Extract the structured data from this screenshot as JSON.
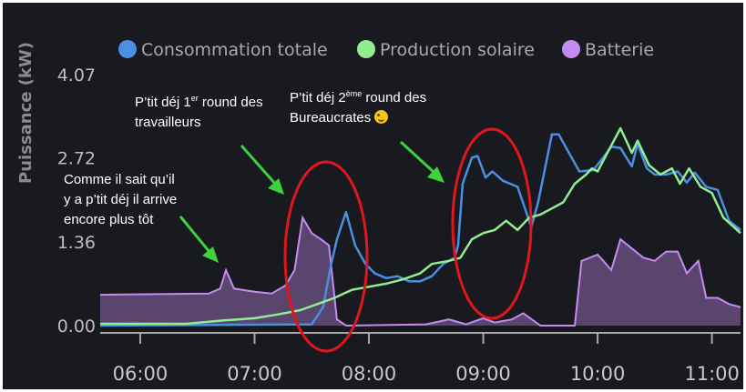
{
  "chart_data": {
    "type": "line",
    "ylabel": "Puissance (kW)",
    "yticks": [
      "4.07",
      "2.72",
      "1.36",
      "0.00"
    ],
    "ytick_values": [
      4.07,
      2.72,
      1.36,
      0.0
    ],
    "xticks": [
      "06:00",
      "07:00",
      "08:00",
      "09:00",
      "10:00",
      "11:00"
    ],
    "xtick_hours": [
      6,
      7,
      8,
      9,
      10,
      11
    ],
    "xlim": [
      5.65,
      11.25
    ],
    "ylim": [
      0,
      4.07
    ],
    "grid": false,
    "legend_position": "top",
    "series": [
      {
        "name": "Consommation totale",
        "color": "#4a90e2",
        "points": [
          [
            5.65,
            0.0
          ],
          [
            7.5,
            0.02
          ],
          [
            7.6,
            0.3
          ],
          [
            7.67,
            1.0
          ],
          [
            7.72,
            1.4
          ],
          [
            7.8,
            1.84
          ],
          [
            7.88,
            1.3
          ],
          [
            7.97,
            1.0
          ],
          [
            8.05,
            0.85
          ],
          [
            8.15,
            0.77
          ],
          [
            8.25,
            0.8
          ],
          [
            8.35,
            0.72
          ],
          [
            8.45,
            0.72
          ],
          [
            8.55,
            0.8
          ],
          [
            8.65,
            1.0
          ],
          [
            8.75,
            1.1
          ],
          [
            8.78,
            1.3
          ],
          [
            8.82,
            2.3
          ],
          [
            8.9,
            2.72
          ],
          [
            8.95,
            2.75
          ],
          [
            9.02,
            2.4
          ],
          [
            9.08,
            2.5
          ],
          [
            9.17,
            2.35
          ],
          [
            9.3,
            2.25
          ],
          [
            9.42,
            1.6
          ],
          [
            9.48,
            2.0
          ],
          [
            9.6,
            3.1
          ],
          [
            9.66,
            3.1
          ],
          [
            9.72,
            2.9
          ],
          [
            9.84,
            2.5
          ],
          [
            9.96,
            2.52
          ],
          [
            10.06,
            2.75
          ],
          [
            10.12,
            2.9
          ],
          [
            10.2,
            2.88
          ],
          [
            10.3,
            2.58
          ],
          [
            10.35,
            2.95
          ],
          [
            10.43,
            2.55
          ],
          [
            10.5,
            2.45
          ],
          [
            10.6,
            2.45
          ],
          [
            10.7,
            2.5
          ],
          [
            10.78,
            2.32
          ],
          [
            10.85,
            2.48
          ],
          [
            10.95,
            2.25
          ],
          [
            11.05,
            2.2
          ],
          [
            11.15,
            1.7
          ],
          [
            11.25,
            1.55
          ]
        ]
      },
      {
        "name": "Production solaire",
        "color": "#90ee90",
        "points": [
          [
            5.65,
            0.03
          ],
          [
            6.4,
            0.03
          ],
          [
            6.7,
            0.08
          ],
          [
            7.0,
            0.12
          ],
          [
            7.2,
            0.18
          ],
          [
            7.4,
            0.25
          ],
          [
            7.55,
            0.35
          ],
          [
            7.7,
            0.45
          ],
          [
            7.85,
            0.58
          ],
          [
            8.0,
            0.63
          ],
          [
            8.15,
            0.68
          ],
          [
            8.3,
            0.75
          ],
          [
            8.45,
            0.85
          ],
          [
            8.55,
            1.0
          ],
          [
            8.7,
            1.05
          ],
          [
            8.8,
            1.1
          ],
          [
            8.9,
            1.4
          ],
          [
            9.0,
            1.5
          ],
          [
            9.1,
            1.55
          ],
          [
            9.2,
            1.7
          ],
          [
            9.3,
            1.55
          ],
          [
            9.4,
            1.75
          ],
          [
            9.5,
            1.8
          ],
          [
            9.6,
            1.9
          ],
          [
            9.7,
            2.0
          ],
          [
            9.8,
            2.3
          ],
          [
            9.9,
            2.45
          ],
          [
            9.95,
            2.55
          ],
          [
            10.0,
            2.5
          ],
          [
            10.1,
            2.85
          ],
          [
            10.2,
            3.2
          ],
          [
            10.3,
            2.8
          ],
          [
            10.35,
            3.0
          ],
          [
            10.45,
            2.6
          ],
          [
            10.55,
            2.45
          ],
          [
            10.65,
            2.55
          ],
          [
            10.72,
            2.3
          ],
          [
            10.8,
            2.55
          ],
          [
            10.9,
            2.25
          ],
          [
            11.0,
            2.15
          ],
          [
            11.1,
            1.75
          ],
          [
            11.25,
            1.5
          ]
        ]
      },
      {
        "name": "Batterie",
        "color": "#c58cf0",
        "points": [
          [
            5.65,
            0.5
          ],
          [
            6.6,
            0.52
          ],
          [
            6.7,
            0.6
          ],
          [
            6.75,
            0.9
          ],
          [
            6.82,
            0.6
          ],
          [
            7.0,
            0.55
          ],
          [
            7.15,
            0.52
          ],
          [
            7.27,
            0.65
          ],
          [
            7.35,
            0.9
          ],
          [
            7.42,
            1.75
          ],
          [
            7.5,
            1.5
          ],
          [
            7.58,
            1.4
          ],
          [
            7.65,
            1.3
          ],
          [
            7.72,
            0.1
          ],
          [
            7.8,
            0.0
          ],
          [
            8.5,
            0.02
          ],
          [
            8.7,
            0.1
          ],
          [
            8.85,
            0.02
          ],
          [
            9.0,
            0.12
          ],
          [
            9.1,
            0.05
          ],
          [
            9.25,
            0.1
          ],
          [
            9.35,
            0.2
          ],
          [
            9.5,
            0.0
          ],
          [
            9.8,
            0.0
          ],
          [
            9.86,
            1.05
          ],
          [
            10.0,
            1.15
          ],
          [
            10.05,
            1.05
          ],
          [
            10.12,
            0.9
          ],
          [
            10.2,
            1.4
          ],
          [
            10.3,
            1.25
          ],
          [
            10.4,
            1.1
          ],
          [
            10.5,
            1.05
          ],
          [
            10.6,
            1.2
          ],
          [
            10.7,
            1.2
          ],
          [
            10.78,
            0.85
          ],
          [
            10.88,
            1.05
          ],
          [
            10.95,
            0.45
          ],
          [
            11.05,
            0.45
          ],
          [
            11.15,
            0.35
          ],
          [
            11.25,
            0.3
          ]
        ]
      }
    ],
    "annotations": [
      {
        "lines": [
          "Comme il sait qu’il",
          "y a p’tit déj il arrive",
          "encore plus tôt"
        ]
      },
      {
        "line1_pre": "P’tit déj 1",
        "line1_sup": "er",
        "line1_post": " round des",
        "line2": "travailleurs"
      },
      {
        "line1_pre": "P’tit déj 2",
        "line1_sup": "ème",
        "line1_post": " round des",
        "line2": "Bureaucrates"
      }
    ],
    "highlight_color": "#e0161d",
    "arrow_color": "#3dd13d",
    "background": "#191a1f",
    "axis_color": "#a8a8a8"
  }
}
